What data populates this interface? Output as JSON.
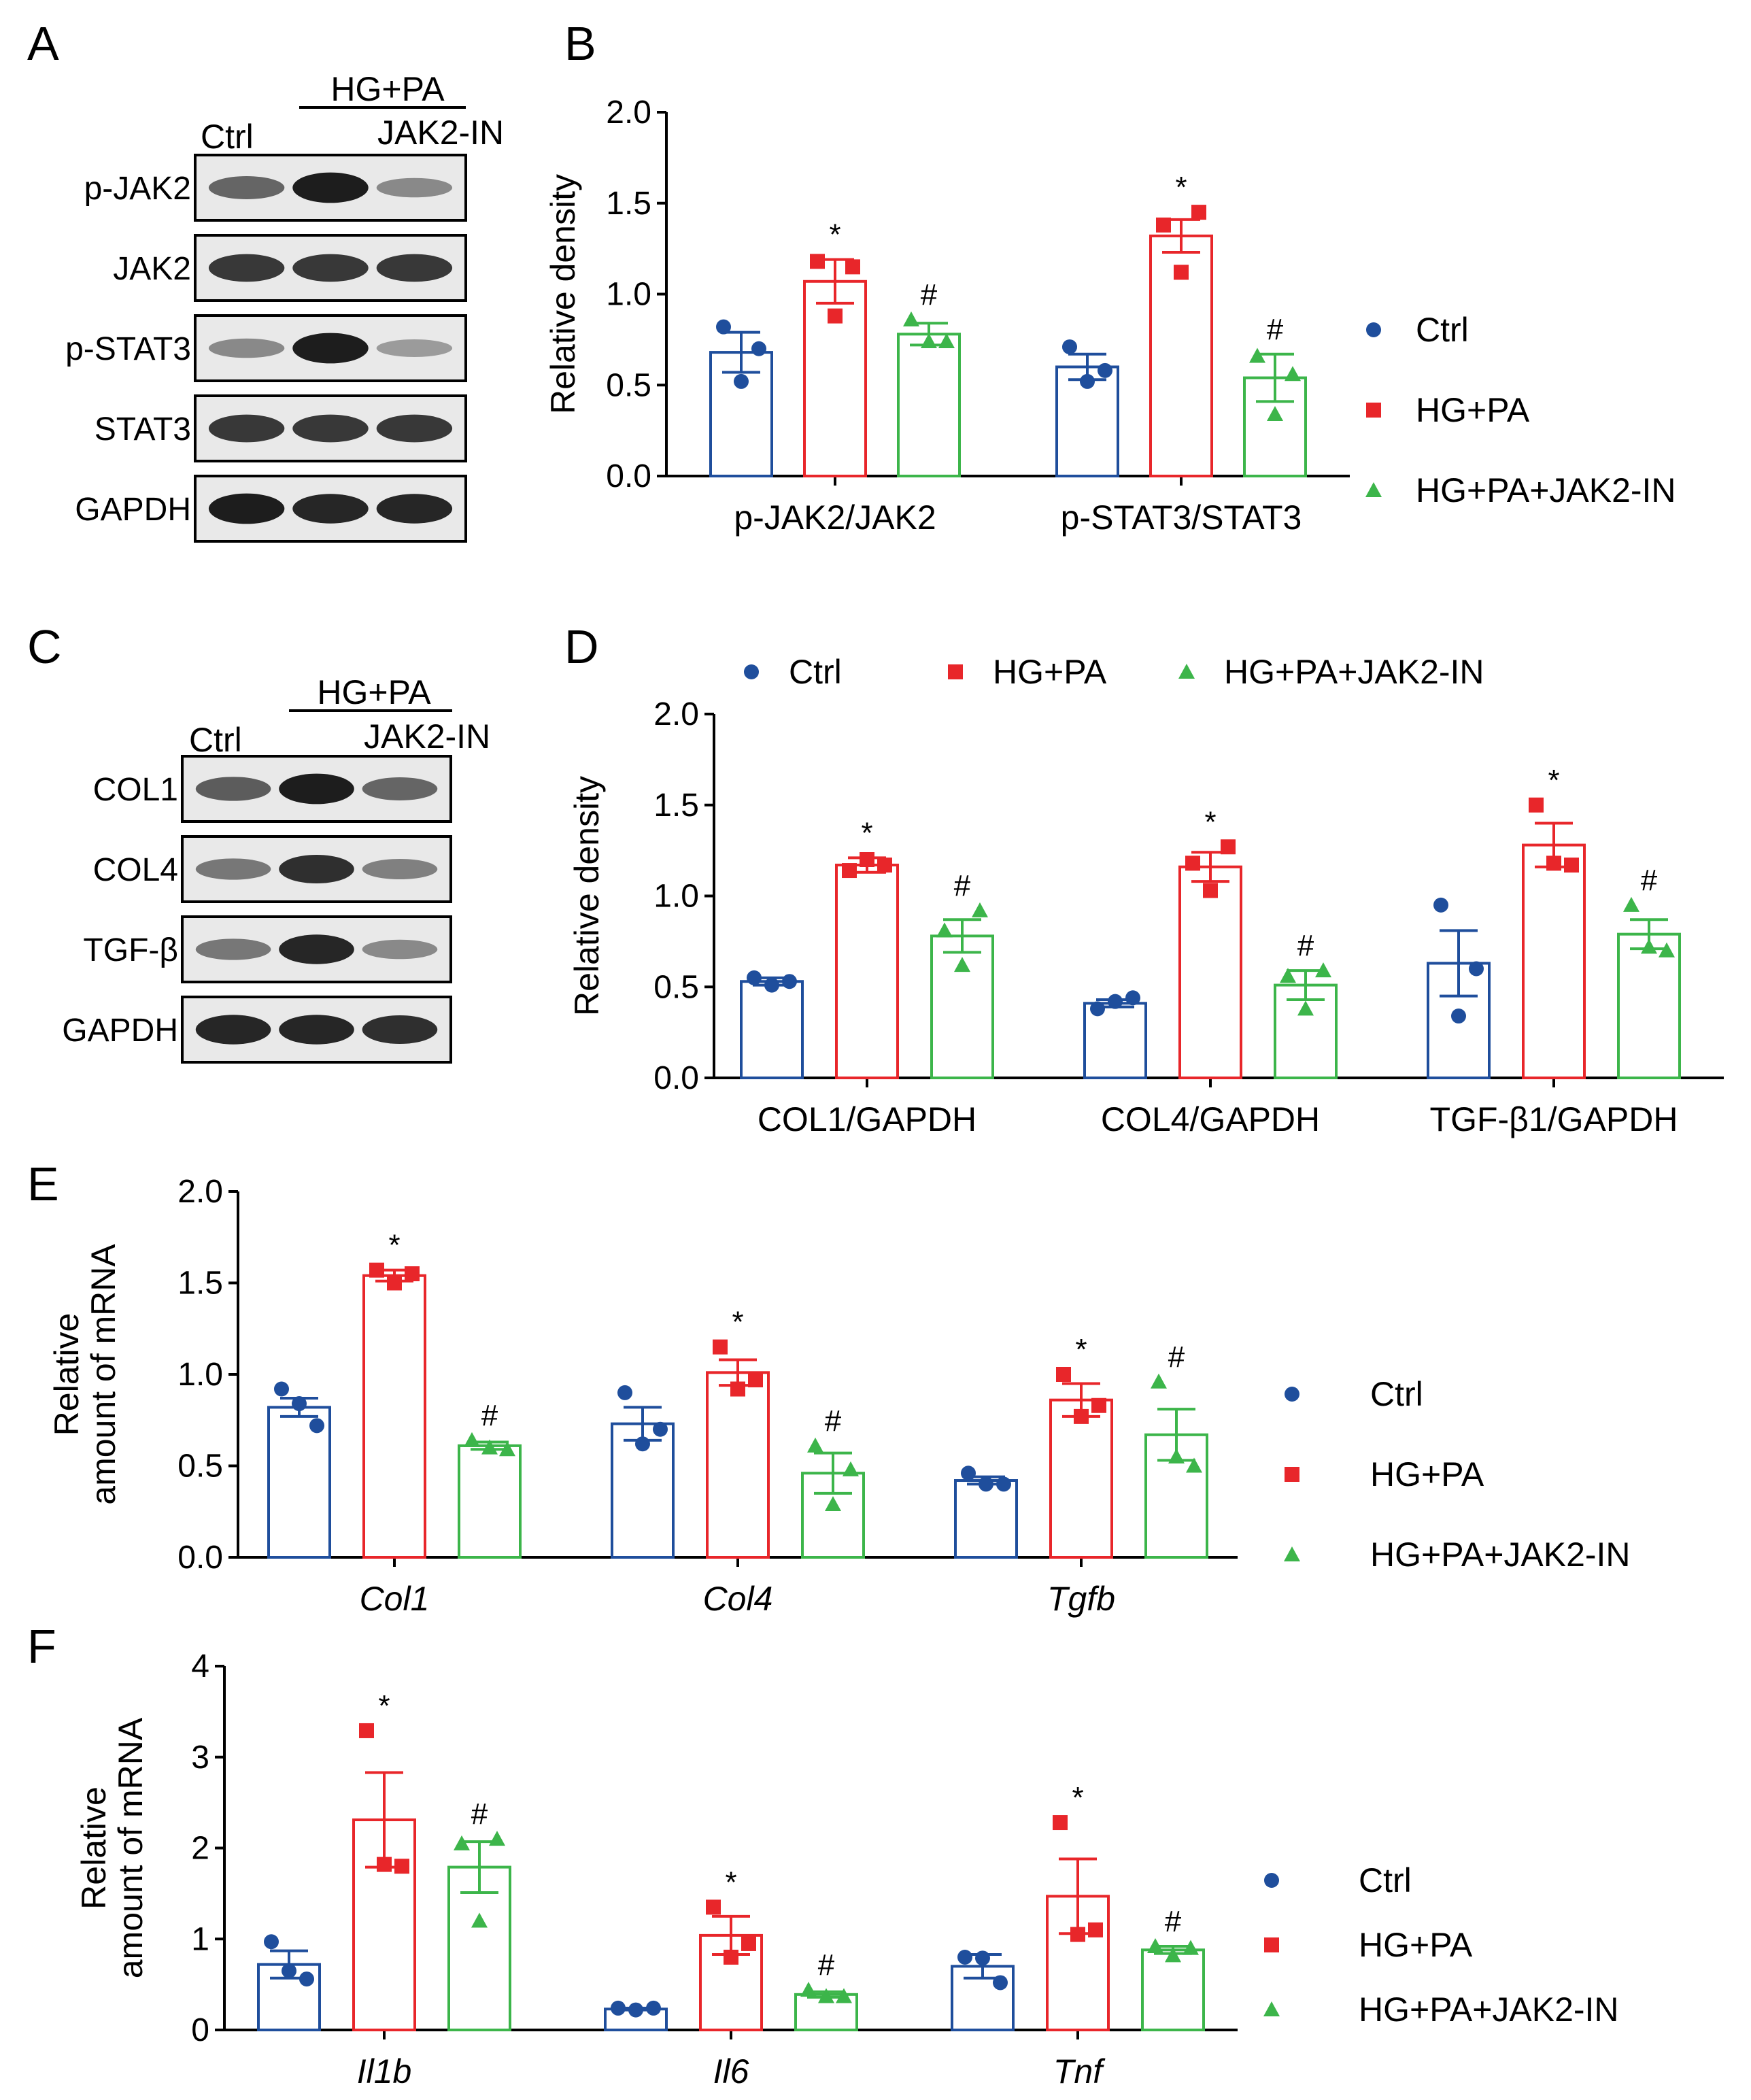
{
  "panels": {
    "A": {
      "letter": "A",
      "lane_ctrl": "Ctrl",
      "group_label": "HG+PA",
      "lane_inhib": "JAK2-IN",
      "rows": [
        "p-JAK2",
        "JAK2",
        "p-STAT3",
        "STAT3",
        "GAPDH"
      ]
    },
    "C": {
      "letter": "C",
      "lane_ctrl": "Ctrl",
      "group_label": "HG+PA",
      "lane_inhib": "JAK2-IN",
      "rows": [
        "COL1",
        "COL4",
        "TGF-β",
        "GAPDH"
      ]
    },
    "B": {
      "letter": "B"
    },
    "D": {
      "letter": "D"
    },
    "E": {
      "letter": "E"
    },
    "F": {
      "letter": "F"
    }
  },
  "legend": [
    "Ctrl",
    "HG+PA",
    "HG+PA+JAK2-IN"
  ],
  "colors": {
    "ctrl": "#1f4e9c",
    "hgpa": "#e8262a",
    "jak2in": "#3cb54a"
  },
  "chart_data": [
    {
      "id": "B",
      "type": "bar",
      "ylabel": "Relative density",
      "ylim": [
        0,
        2.0
      ],
      "yticks": [
        "0.0",
        "0.5",
        "1.0",
        "1.5",
        "2.0"
      ],
      "categories": [
        "p-JAK2/JAK2",
        "p-STAT3/STAT3"
      ],
      "series": [
        {
          "name": "Ctrl",
          "values": [
            0.68,
            0.6
          ],
          "sem": [
            0.11,
            0.07
          ],
          "points": [
            [
              0.82,
              0.52,
              0.7
            ],
            [
              0.71,
              0.52,
              0.58
            ]
          ]
        },
        {
          "name": "HG+PA",
          "values": [
            1.07,
            1.32
          ],
          "sem": [
            0.12,
            0.09
          ],
          "points": [
            [
              1.18,
              0.88,
              1.15
            ],
            [
              1.38,
              1.12,
              1.45
            ]
          ]
        },
        {
          "name": "HG+PA+JAK2-IN",
          "values": [
            0.78,
            0.54
          ],
          "sem": [
            0.06,
            0.13
          ],
          "points": [
            [
              0.86,
              0.74,
              0.74
            ],
            [
              0.66,
              0.34,
              0.56
            ]
          ]
        }
      ],
      "annotations": [
        [
          "*",
          "#"
        ],
        [
          "*",
          "#"
        ]
      ]
    },
    {
      "id": "D",
      "type": "bar",
      "ylabel": "Relative density",
      "ylim": [
        0,
        2.0
      ],
      "yticks": [
        "0.0",
        "0.5",
        "1.0",
        "1.5",
        "2.0"
      ],
      "categories": [
        "COL1/GAPDH",
        "COL4/GAPDH",
        "TGF-β1/GAPDH"
      ],
      "series": [
        {
          "name": "Ctrl",
          "values": [
            0.53,
            0.41,
            0.63
          ],
          "sem": [
            0.02,
            0.02,
            0.18
          ],
          "points": [
            [
              0.55,
              0.51,
              0.53
            ],
            [
              0.38,
              0.42,
              0.44
            ],
            [
              0.95,
              0.34,
              0.6
            ]
          ]
        },
        {
          "name": "HG+PA",
          "values": [
            1.17,
            1.16,
            1.28
          ],
          "sem": [
            0.04,
            0.08,
            0.12
          ],
          "points": [
            [
              1.14,
              1.2,
              1.17
            ],
            [
              1.18,
              1.03,
              1.27
            ],
            [
              1.5,
              1.18,
              1.17
            ]
          ]
        },
        {
          "name": "HG+PA+JAK2-IN",
          "values": [
            0.78,
            0.51,
            0.79
          ],
          "sem": [
            0.09,
            0.08,
            0.08
          ],
          "points": [
            [
              0.81,
              0.62,
              0.92
            ],
            [
              0.56,
              0.38,
              0.59
            ],
            [
              0.95,
              0.72,
              0.7
            ]
          ]
        }
      ],
      "annotations": [
        [
          "*",
          "#"
        ],
        [
          "*",
          "#"
        ],
        [
          "*",
          "#"
        ]
      ]
    },
    {
      "id": "E",
      "type": "bar",
      "ylabel": [
        "Relative",
        "amount of mRNA"
      ],
      "ylim": [
        0,
        2.0
      ],
      "yticks": [
        "0.0",
        "0.5",
        "1.0",
        "1.5",
        "2.0"
      ],
      "categories": [
        "Col1",
        "Col4",
        "Tgfb"
      ],
      "series": [
        {
          "name": "Ctrl",
          "values": [
            0.82,
            0.73,
            0.42
          ],
          "sem": [
            0.05,
            0.09,
            0.02
          ],
          "points": [
            [
              0.92,
              0.84,
              0.72
            ],
            [
              0.9,
              0.62,
              0.7
            ],
            [
              0.46,
              0.4,
              0.4
            ]
          ]
        },
        {
          "name": "HG+PA",
          "values": [
            1.54,
            1.01,
            0.86
          ],
          "sem": [
            0.03,
            0.07,
            0.09
          ],
          "points": [
            [
              1.57,
              1.5,
              1.55
            ],
            [
              1.15,
              0.92,
              0.97
            ],
            [
              1.0,
              0.77,
              0.83
            ]
          ]
        },
        {
          "name": "HG+PA+JAK2-IN",
          "values": [
            0.61,
            0.46,
            0.67
          ],
          "sem": [
            0.02,
            0.11,
            0.14
          ],
          "points": [
            [
              0.64,
              0.6,
              0.59
            ],
            [
              0.61,
              0.29,
              0.48
            ],
            [
              0.96,
              0.55,
              0.5
            ]
          ]
        }
      ],
      "annotations": [
        [
          "*",
          "#"
        ],
        [
          "*",
          "#"
        ],
        [
          "*",
          "#"
        ]
      ]
    },
    {
      "id": "F",
      "type": "bar",
      "ylabel": [
        "Relative",
        "amount of mRNA"
      ],
      "ylim": [
        0,
        4
      ],
      "yticks": [
        "0",
        "1",
        "2",
        "3",
        "4"
      ],
      "categories": [
        "Il1b",
        "Il6",
        "Tnf"
      ],
      "series": [
        {
          "name": "Ctrl",
          "values": [
            0.72,
            0.23,
            0.7
          ],
          "sem": [
            0.15,
            0.01,
            0.13
          ],
          "points": [
            [
              0.97,
              0.65,
              0.56
            ],
            [
              0.24,
              0.22,
              0.24
            ],
            [
              0.8,
              0.79,
              0.52
            ]
          ]
        },
        {
          "name": "HG+PA",
          "values": [
            2.31,
            1.04,
            1.47
          ],
          "sem": [
            0.52,
            0.21,
            0.41
          ],
          "points": [
            [
              3.29,
              1.82,
              1.8
            ],
            [
              1.35,
              0.8,
              0.95
            ],
            [
              2.28,
              1.05,
              1.1
            ]
          ]
        },
        {
          "name": "HG+PA+JAK2-IN",
          "values": [
            1.79,
            0.39,
            0.88
          ],
          "sem": [
            0.28,
            0.03,
            0.04
          ],
          "points": [
            [
              2.05,
              1.2,
              2.1
            ],
            [
              0.44,
              0.37,
              0.37
            ],
            [
              0.92,
              0.82,
              0.9
            ]
          ]
        }
      ],
      "annotations": [
        [
          "*",
          "#"
        ],
        [
          "*",
          "#"
        ],
        [
          "*",
          "#"
        ]
      ]
    }
  ]
}
